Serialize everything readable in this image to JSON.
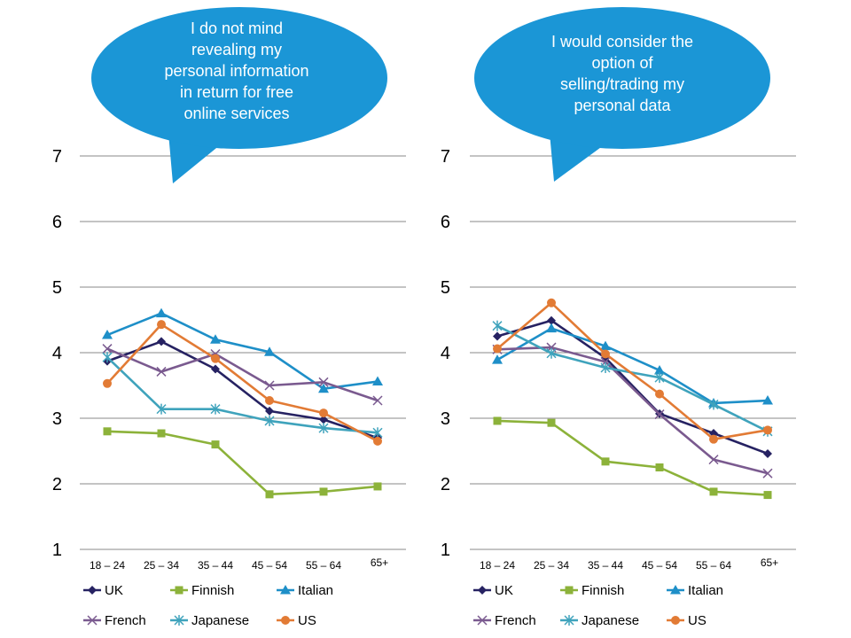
{
  "colors": {
    "UK": "#262262",
    "Finnish": "#8CB23A",
    "Italian": "#1E8FC8",
    "French": "#7A5A8F",
    "Japanese": "#3FA3BC",
    "US": "#E27B35",
    "bubble": "#1B96D6",
    "grid": "#8A8A8A"
  },
  "chart_data": [
    {
      "type": "line",
      "callout": [
        "I do not mind",
        "revealing my",
        "personal information",
        "in return for free",
        "online services"
      ],
      "categories": [
        "18 – 24",
        "25 – 34",
        "35 – 44",
        "45 – 54",
        "55 – 64",
        "65+"
      ],
      "ylim": [
        1,
        7
      ],
      "yticks": [
        "1",
        "2",
        "3",
        "4",
        "5",
        "6",
        "7"
      ],
      "grid": true,
      "legend_position": "bottom",
      "series": [
        {
          "name": "UK",
          "marker": "diamond",
          "values": [
            3.87,
            4.17,
            3.75,
            3.11,
            2.98,
            2.7
          ]
        },
        {
          "name": "Finnish",
          "marker": "square",
          "values": [
            2.8,
            2.77,
            2.6,
            1.84,
            1.88,
            1.96
          ]
        },
        {
          "name": "Italian",
          "marker": "triangle",
          "values": [
            4.27,
            4.6,
            4.2,
            4.01,
            3.45,
            3.56
          ]
        },
        {
          "name": "French",
          "marker": "x",
          "values": [
            4.06,
            3.71,
            3.98,
            3.5,
            3.55,
            3.27
          ]
        },
        {
          "name": "Japanese",
          "marker": "star",
          "values": [
            3.93,
            3.14,
            3.14,
            2.96,
            2.85,
            2.78
          ]
        },
        {
          "name": "US",
          "marker": "circle",
          "values": [
            3.53,
            4.43,
            3.91,
            3.27,
            3.08,
            2.65
          ]
        }
      ]
    },
    {
      "type": "line",
      "callout": [
        "I would consider the",
        "option of",
        "selling/trading my",
        "personal data"
      ],
      "categories": [
        "18 – 24",
        "25 – 34",
        "35 – 44",
        "45 – 54",
        "55 – 64",
        "65+"
      ],
      "ylim": [
        1,
        7
      ],
      "yticks": [
        "1",
        "2",
        "3",
        "4",
        "5",
        "6",
        "7"
      ],
      "grid": true,
      "legend_position": "bottom",
      "series": [
        {
          "name": "UK",
          "marker": "diamond",
          "values": [
            4.25,
            4.49,
            3.92,
            3.07,
            2.77,
            2.46
          ]
        },
        {
          "name": "Finnish",
          "marker": "square",
          "values": [
            2.96,
            2.93,
            2.34,
            2.25,
            1.88,
            1.83
          ]
        },
        {
          "name": "Italian",
          "marker": "triangle",
          "values": [
            3.89,
            4.37,
            4.1,
            3.73,
            3.23,
            3.27
          ]
        },
        {
          "name": "French",
          "marker": "x",
          "values": [
            4.05,
            4.08,
            3.86,
            3.06,
            2.37,
            2.16
          ]
        },
        {
          "name": "Japanese",
          "marker": "star",
          "values": [
            4.41,
            3.99,
            3.77,
            3.62,
            3.21,
            2.8
          ]
        },
        {
          "name": "US",
          "marker": "circle",
          "values": [
            4.06,
            4.76,
            3.98,
            3.37,
            2.68,
            2.82
          ]
        }
      ]
    }
  ]
}
